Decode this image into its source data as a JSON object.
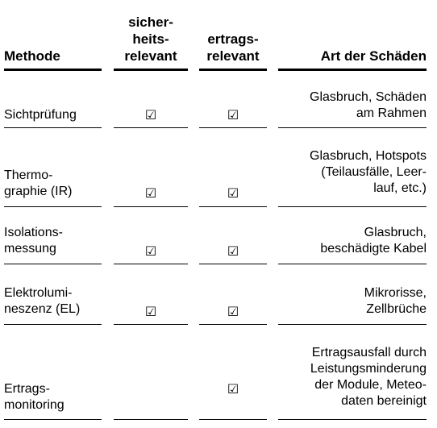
{
  "table": {
    "headers": {
      "method": "Methode",
      "safety": "sicher-\nheits-\nrelevant",
      "yield": "ertrags-\nrelevant",
      "damage": "Art der Schäden"
    },
    "check_symbol": "☑",
    "rows": [
      {
        "method": "Sichtprüfung",
        "safety_relevant": true,
        "yield_relevant": true,
        "damage": "Glasbruch, Schäden\nam Rahmen"
      },
      {
        "method": "Thermo-\ngraphie (IR)",
        "safety_relevant": true,
        "yield_relevant": true,
        "damage": "Glasbruch, Hotspots\n(Teilausfälle, Leer-\nlauf, etc.)"
      },
      {
        "method": "Isolations-\nmessung",
        "safety_relevant": true,
        "yield_relevant": true,
        "damage": "Glasbruch,\nbeschädigte Kabel"
      },
      {
        "method": "Elektrolumi-\nneszenz (EL)",
        "safety_relevant": true,
        "yield_relevant": true,
        "damage": "Mikrorisse,\nZellbrüche"
      },
      {
        "method": "Ertrags-\nmonitoring",
        "safety_relevant": false,
        "yield_relevant": true,
        "damage": "Ertragsausfall durch\nLeistungsminderung\nder Module, Meteo-\ndaten bereinigt"
      }
    ]
  }
}
